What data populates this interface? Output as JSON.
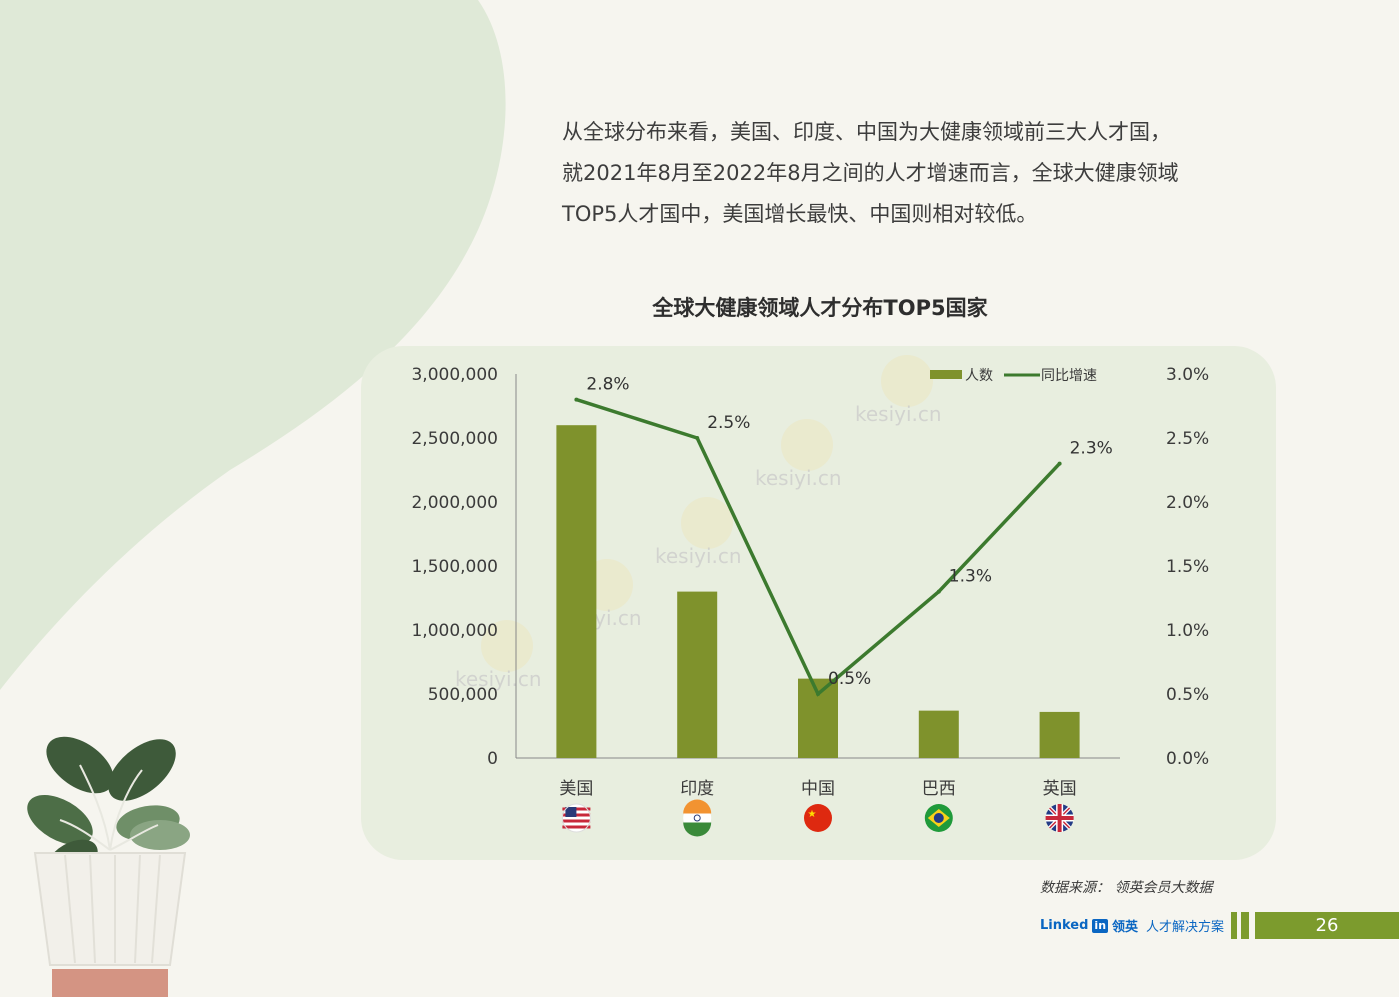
{
  "intro_lines": [
    "从全球分布来看，美国、印度、中国为大健康领域前三大人才国，",
    "就2021年8月至2022年8月之间的人才增速而言，全球大健康领域",
    "TOP5人才国中，美国增长最快、中国则相对较低。"
  ],
  "chart_data": {
    "type": "bar",
    "title": "全球大健康领域人才分布TOP5国家",
    "categories": [
      "美国",
      "印度",
      "中国",
      "巴西",
      "英国"
    ],
    "series": [
      {
        "name": "人数",
        "type": "bar",
        "axis": "left",
        "color": "#7f922c",
        "values": [
          2600000,
          1300000,
          620000,
          370000,
          360000
        ]
      },
      {
        "name": "同比增速",
        "type": "line",
        "axis": "right",
        "color": "#3c7a2e",
        "values": [
          0.028,
          0.025,
          0.005,
          0.013,
          0.023
        ],
        "labels": [
          "2.8%",
          "2.5%",
          "0.5%",
          "1.3%",
          "2.3%"
        ]
      }
    ],
    "y_left": {
      "ylim": [
        0,
        3000000
      ],
      "ticks": [
        0,
        500000,
        1000000,
        1500000,
        2000000,
        2500000,
        3000000
      ],
      "tick_labels": [
        "0",
        "500,000",
        "1,000,000",
        "1,500,000",
        "2,000,000",
        "2,500,000",
        "3,000,000"
      ]
    },
    "y_right": {
      "ylim": [
        0,
        0.03
      ],
      "ticks": [
        0,
        0.005,
        0.01,
        0.015,
        0.02,
        0.025,
        0.03
      ],
      "tick_labels": [
        "0.0%",
        "0.5%",
        "1.0%",
        "1.5%",
        "2.0%",
        "2.5%",
        "3.0%"
      ]
    },
    "legend_position": "top-right",
    "flags": [
      "us-flag-icon",
      "india-flag-icon",
      "china-flag-icon",
      "brazil-flag-icon",
      "uk-flag-icon"
    ],
    "watermark_text": "kesiyi.cn"
  },
  "source_text": "数据来源： 领英会员大数据",
  "footer": {
    "brand_linked": "Linked",
    "brand_in": "in",
    "brand_cn": "领英",
    "tagline": "人才解决方案",
    "page_number": "26"
  },
  "colors": {
    "accent": "#7c9b2d",
    "panel": "#e8eedf",
    "blob": "#dfe9d7",
    "line": "#3c7a2e"
  }
}
